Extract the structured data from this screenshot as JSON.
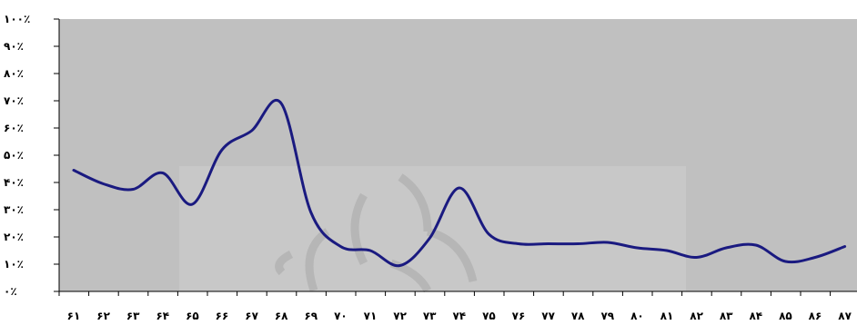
{
  "chart_data": {
    "type": "line",
    "title": "",
    "xlabel": "",
    "ylabel": "",
    "categories": [
      "۶۱",
      "۶۲",
      "۶۳",
      "۶۴",
      "۶۵",
      "۶۶",
      "۶۷",
      "۶۸",
      "۶۹",
      "۷۰",
      "۷۱",
      "۷۲",
      "۷۳",
      "۷۴",
      "۷۵",
      "۷۶",
      "۷۷",
      "۷۸",
      "۷۹",
      "۸۰",
      "۸۱",
      "۸۲",
      "۸۳",
      "۸۴",
      "۸۵",
      "۸۶",
      "۸۷"
    ],
    "y_ticks": [
      "۰٪",
      "۱۰٪",
      "۲۰٪",
      "۳۰٪",
      "۴۰٪",
      "۵۰٪",
      "۶۰٪",
      "۷۰٪",
      "۸۰٪",
      "۹۰٪",
      "۱۰۰٪"
    ],
    "ylim": [
      0,
      100
    ],
    "grid": false,
    "series": [
      {
        "values": [
          44.5,
          39.5,
          37.5,
          43.5,
          32,
          52,
          59,
          69,
          29,
          16.5,
          15,
          9.5,
          19.5,
          38,
          21,
          17.5,
          17.5,
          17.5,
          18,
          16,
          15,
          12.5,
          16,
          17,
          11,
          12.5,
          16.5
        ],
        "color": "#1a1a80"
      }
    ],
    "plot_background": "#c0c0c0"
  }
}
